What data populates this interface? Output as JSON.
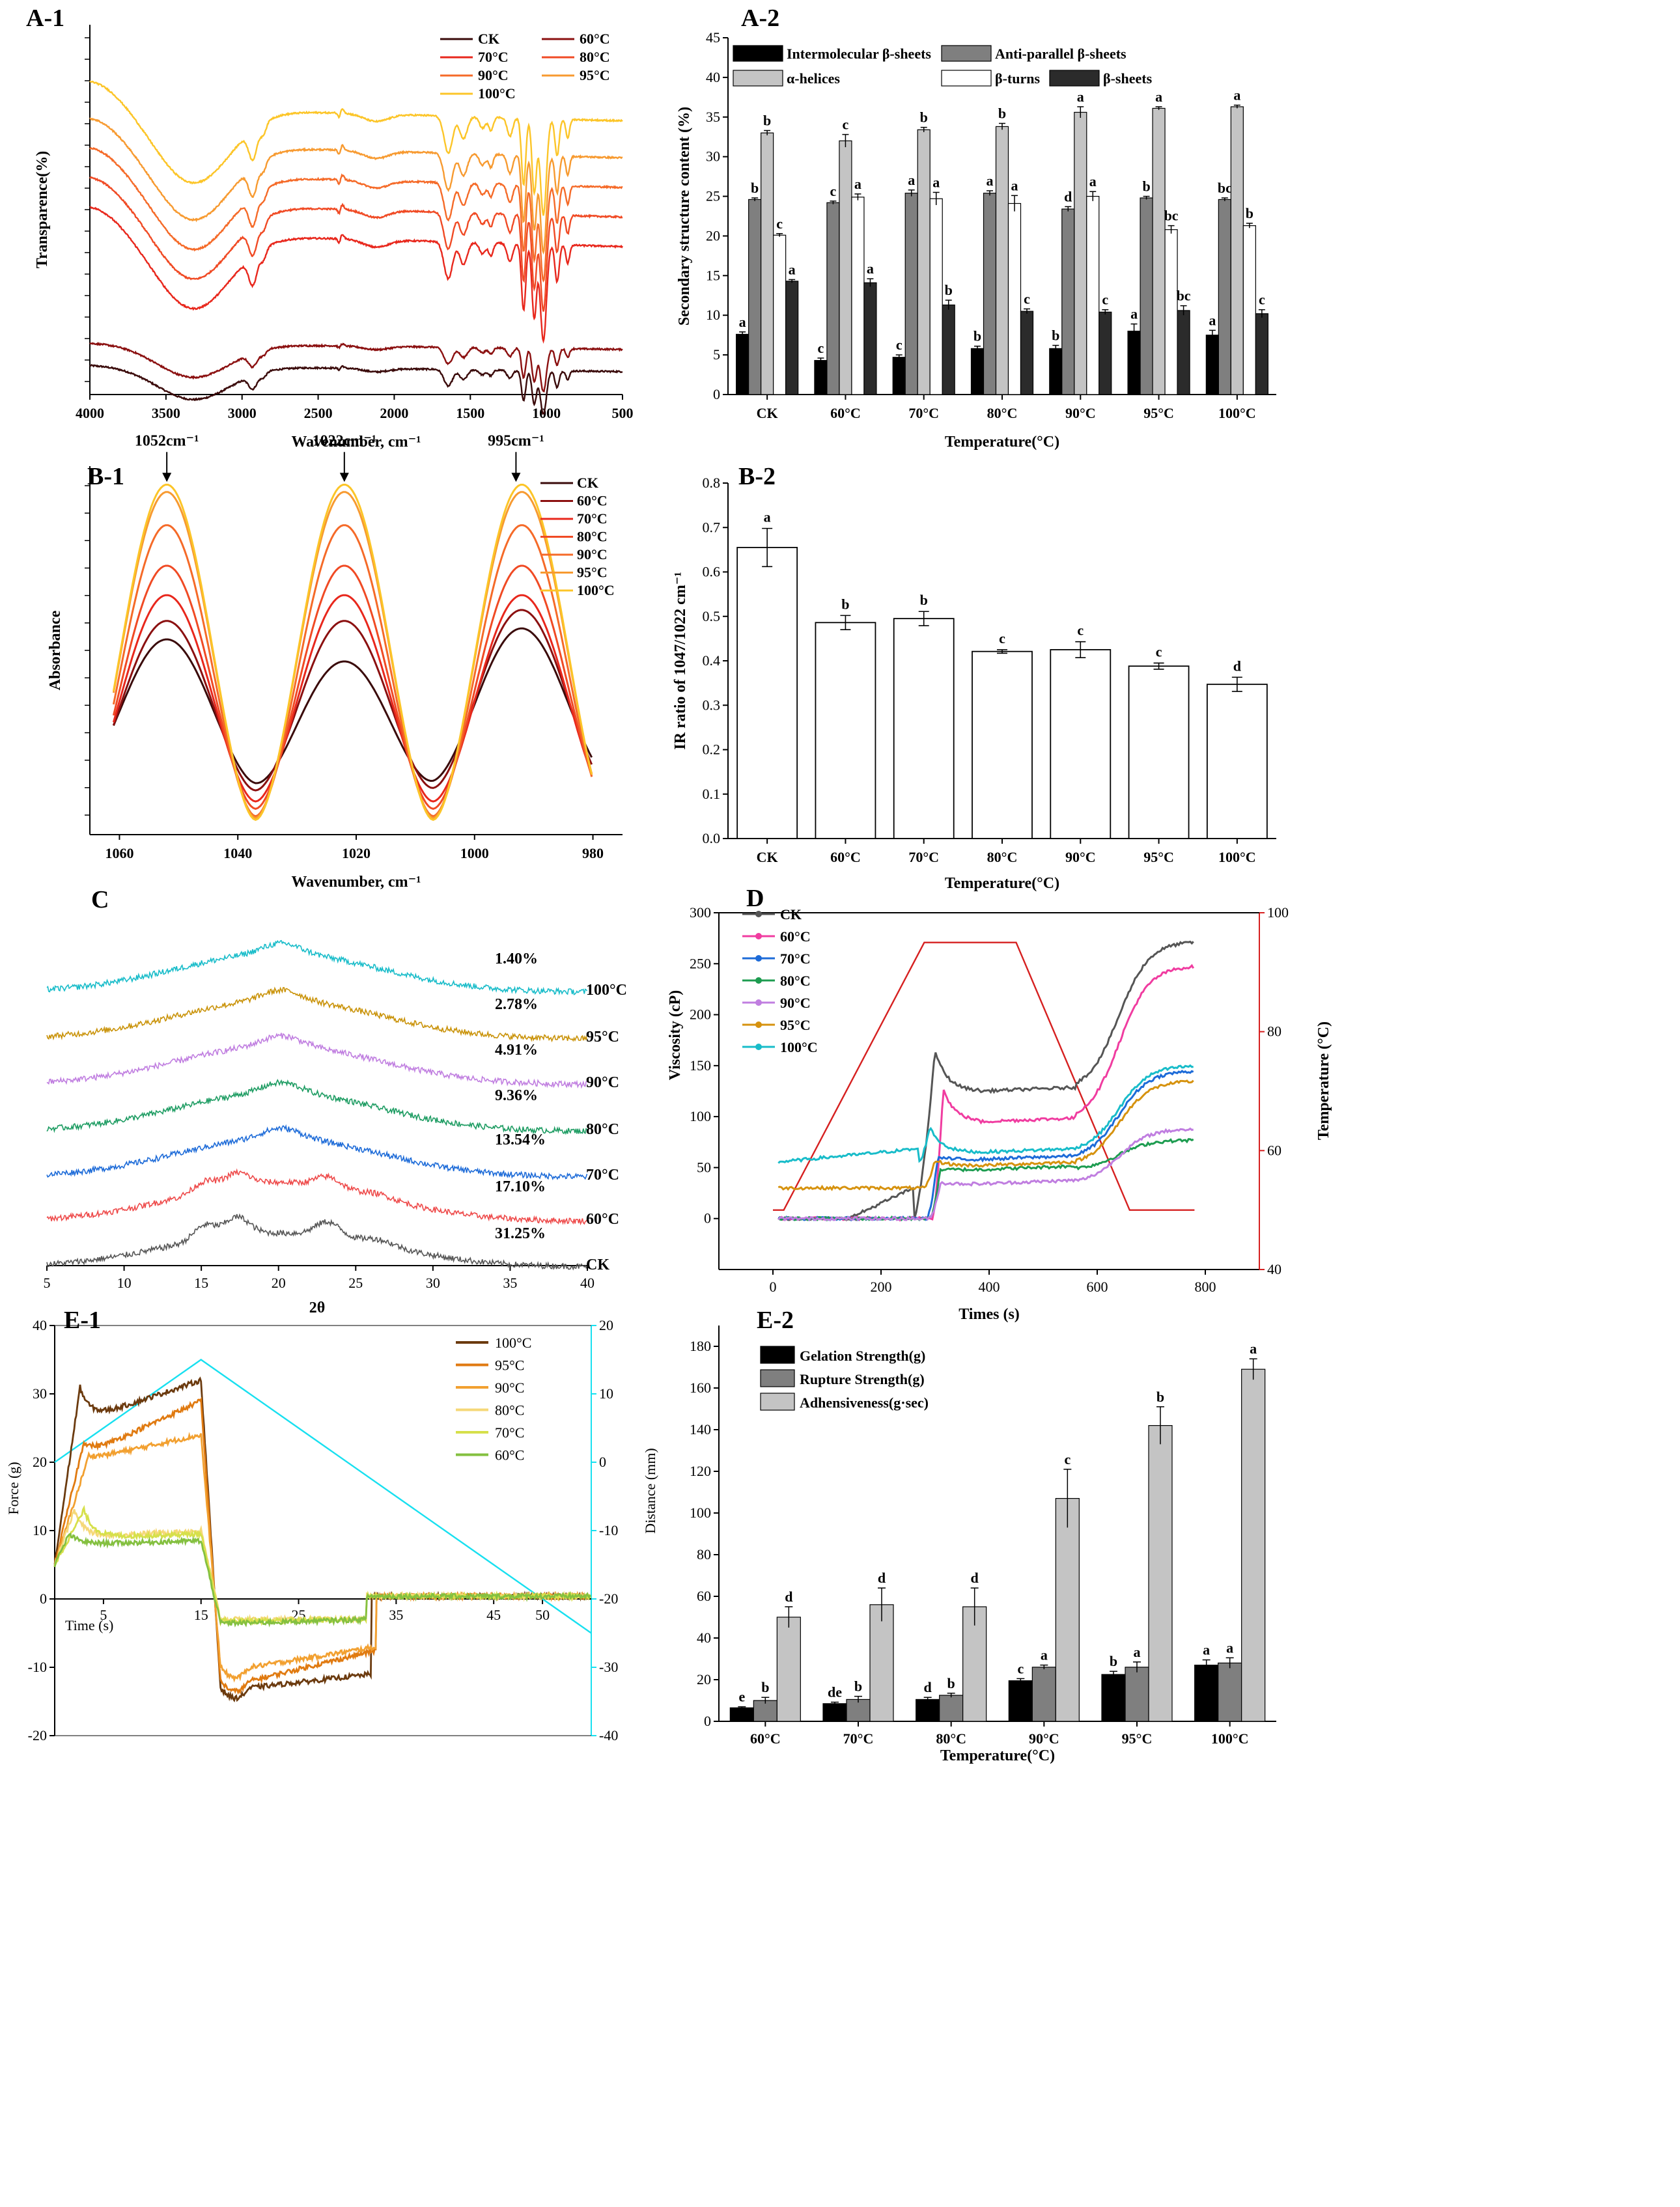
{
  "chart_data": [
    {
      "id": "A-1",
      "type": "line",
      "panel_label": "A-1",
      "xlabel": "Wavenumber, cm⁻¹",
      "ylabel": "Transparence(%)",
      "xlim": [
        4000,
        500
      ],
      "x_ticks": [
        "4000",
        "3500",
        "3000",
        "2500",
        "2000",
        "1500",
        "1000",
        "500"
      ],
      "legend": [
        "CK",
        "60°C",
        "70°C",
        "80°C",
        "90°C",
        "95°C",
        "100°C"
      ],
      "colors": [
        "#3a0a0a",
        "#8b1010",
        "#e8271c",
        "#f04a24",
        "#f56a28",
        "#f79a30",
        "#fcc528"
      ],
      "offsets": [
        0.08,
        0.14,
        0.44,
        0.52,
        0.6,
        0.68,
        0.78
      ]
    },
    {
      "id": "A-2",
      "type": "bar",
      "panel_label": "A-2",
      "xlabel": "Temperature(°C)",
      "ylabel": "Secondary structure content (%)",
      "ylim": [
        0,
        45
      ],
      "y_ticks": [
        "0",
        "5",
        "10",
        "15",
        "20",
        "25",
        "30",
        "35",
        "40",
        "45"
      ],
      "categories": [
        "CK",
        "60°C",
        "70°C",
        "80°C",
        "90°C",
        "95°C",
        "100°C"
      ],
      "series": [
        {
          "name": "Intermolecular β-sheets",
          "color": "#000000",
          "values": [
            7.6,
            4.3,
            4.7,
            5.8,
            5.8,
            8.0,
            7.5
          ],
          "errors": [
            0.3,
            0.3,
            0.3,
            0.3,
            0.4,
            0.9,
            0.6
          ],
          "labels": [
            "a",
            "c",
            "c",
            "b",
            "b",
            "a",
            "a"
          ]
        },
        {
          "name": "Anti-parallel β-sheets",
          "color": "#7f7f7f",
          "values": [
            24.6,
            24.2,
            25.4,
            25.4,
            23.4,
            24.8,
            24.6
          ],
          "errors": [
            0.2,
            0.2,
            0.4,
            0.3,
            0.3,
            0.2,
            0.2
          ],
          "labels": [
            "b",
            "c",
            "a",
            "a",
            "d",
            "b",
            "bc"
          ]
        },
        {
          "name": "α-helices",
          "color": "#c4c4c4",
          "values": [
            33.0,
            32.0,
            33.4,
            33.8,
            35.6,
            36.1,
            36.3
          ],
          "errors": [
            0.3,
            0.8,
            0.3,
            0.4,
            0.7,
            0.2,
            0.2
          ],
          "labels": [
            "b",
            "c",
            "b",
            "b",
            "a",
            "a",
            "a"
          ]
        },
        {
          "name": "β-turns",
          "color": "#ffffff",
          "values": [
            20.1,
            24.9,
            24.7,
            24.1,
            25.0,
            20.8,
            21.3
          ],
          "errors": [
            0.2,
            0.4,
            0.8,
            1.0,
            0.6,
            0.5,
            0.3
          ],
          "labels": [
            "c",
            "a",
            "a",
            "a",
            "a",
            "bc",
            "b"
          ]
        },
        {
          "name": "β-sheets",
          "color": "#2b2b2b",
          "values": [
            14.3,
            14.1,
            11.3,
            10.5,
            10.4,
            10.6,
            10.2
          ],
          "errors": [
            0.2,
            0.5,
            0.6,
            0.3,
            0.3,
            0.6,
            0.5
          ],
          "labels": [
            "a",
            "a",
            "b",
            "c",
            "c",
            "bc",
            "c"
          ]
        }
      ]
    },
    {
      "id": "B-1",
      "type": "line",
      "panel_label": "B-1",
      "xlabel": "Wavenumber, cm⁻¹",
      "ylabel": "Absorbance",
      "xlim": [
        1065,
        975
      ],
      "x_ticks": [
        "1060",
        "1040",
        "1020",
        "1000",
        "980"
      ],
      "legend": [
        "CK",
        "60°C",
        "70°C",
        "80°C",
        "90°C",
        "95°C",
        "100°C"
      ],
      "colors": [
        "#3a0a0a",
        "#8b1010",
        "#e8271c",
        "#f04a24",
        "#f56a28",
        "#f79a30",
        "#fcc528"
      ],
      "annotations": [
        "1052cm⁻¹",
        "1022cm⁻¹",
        "995cm⁻¹"
      ]
    },
    {
      "id": "B-2",
      "type": "bar",
      "panel_label": "B-2",
      "xlabel": "Temperature(°C)",
      "ylabel": "IR ratio of 1047/1022 cm⁻¹",
      "ylim": [
        0,
        0.8
      ],
      "y_ticks": [
        "0.0",
        "0.1",
        "0.2",
        "0.3",
        "0.4",
        "0.5",
        "0.6",
        "0.7",
        "0.8"
      ],
      "categories": [
        "CK",
        "60°C",
        "70°C",
        "80°C",
        "90°C",
        "95°C",
        "100°C"
      ],
      "values": [
        0.655,
        0.486,
        0.495,
        0.421,
        0.425,
        0.388,
        0.347
      ],
      "errors": [
        0.043,
        0.016,
        0.016,
        0.004,
        0.018,
        0.007,
        0.016
      ],
      "labels": [
        "a",
        "b",
        "b",
        "c",
        "c",
        "c",
        "d"
      ]
    },
    {
      "id": "C",
      "type": "line",
      "panel_label": "C",
      "xlabel": "2θ",
      "xlim": [
        5,
        40
      ],
      "x_ticks": [
        "5",
        "10",
        "15",
        "20",
        "25",
        "30",
        "35",
        "40"
      ],
      "series": [
        {
          "name": "100°C",
          "crystallinity": "1.40%",
          "color": "#18bcc9"
        },
        {
          "name": "95°C",
          "crystallinity": "2.78%",
          "color": "#c99208"
        },
        {
          "name": "90°C",
          "crystallinity": "4.91%",
          "color": "#c07ee0"
        },
        {
          "name": "80°C",
          "crystallinity": "9.36%",
          "color": "#1d9c62"
        },
        {
          "name": "70°C",
          "crystallinity": "13.54%",
          "color": "#1d6bd8"
        },
        {
          "name": "60°C",
          "crystallinity": "17.10%",
          "color": "#ee4a4a"
        },
        {
          "name": "CK",
          "crystallinity": "31.25%",
          "color": "#555555"
        }
      ]
    },
    {
      "id": "D",
      "type": "line",
      "panel_label": "D",
      "xlabel": "Times (s)",
      "ylabel": "Viscosity (cP)",
      "y2label": "Temperature (°C)",
      "xlim": [
        -100,
        900
      ],
      "ylim": [
        -50,
        300
      ],
      "y2lim": [
        40,
        100
      ],
      "x_ticks": [
        "0",
        "200",
        "400",
        "600",
        "800"
      ],
      "y_ticks": [
        "0",
        "50",
        "100",
        "150",
        "200",
        "250",
        "300"
      ],
      "y2_ticks": [
        "40",
        "60",
        "80",
        "100"
      ],
      "legend": [
        "CK",
        "60°C",
        "70°C",
        "80°C",
        "90°C",
        "95°C",
        "100°C"
      ],
      "colors": [
        "#555555",
        "#f03ca0",
        "#1d6bd8",
        "#1d9c50",
        "#c07ee0",
        "#d6920e",
        "#18bcc9"
      ],
      "temp_color": "#d62020"
    },
    {
      "id": "E-1",
      "type": "line",
      "panel_label": "E-1",
      "xlabel": "Time (s)",
      "ylabel": "Force (g)",
      "y2label": "Distance (mm)",
      "xlim": [
        0,
        55
      ],
      "ylim": [
        -20,
        40
      ],
      "y2lim": [
        -40,
        20
      ],
      "x_ticks": [
        "5",
        "15",
        "25",
        "35",
        "45",
        "50"
      ],
      "y_ticks": [
        "-20",
        "-10",
        "0",
        "10",
        "20",
        "30",
        "40"
      ],
      "y2_ticks": [
        "-40",
        "-30",
        "-20",
        "-10",
        "0",
        "10",
        "20"
      ],
      "legend": [
        "100°C",
        "95°C",
        "90°C",
        "80°C",
        "70°C",
        "60°C"
      ],
      "colors": [
        "#6b3a0e",
        "#e07a10",
        "#f2a030",
        "#f5d878",
        "#d6e04a",
        "#84c040"
      ],
      "distance_color": "#18e0f0"
    },
    {
      "id": "E-2",
      "type": "bar",
      "panel_label": "E-2",
      "xlabel": "Temperature(°C)",
      "ylim": [
        0,
        190
      ],
      "y_ticks": [
        "0",
        "20",
        "40",
        "60",
        "80",
        "100",
        "120",
        "140",
        "160",
        "180"
      ],
      "categories": [
        "60°C",
        "70°C",
        "80°C",
        "90°C",
        "95°C",
        "100°C"
      ],
      "series": [
        {
          "name": "Gelation Strength(g)",
          "color": "#000000",
          "values": [
            6.5,
            8.5,
            10.5,
            19.5,
            22.5,
            27
          ],
          "errors": [
            0.5,
            0.7,
            1.0,
            1.0,
            1.5,
            2.5
          ],
          "labels": [
            "e",
            "de",
            "d",
            "c",
            "b",
            "a"
          ]
        },
        {
          "name": "Rupture Strength(g)",
          "color": "#7f7f7f",
          "values": [
            10,
            10.5,
            12.5,
            26,
            26,
            28
          ],
          "errors": [
            1.5,
            1.5,
            1.0,
            1.0,
            2.5,
            2.5
          ],
          "labels": [
            "b",
            "b",
            "b",
            "a",
            "a",
            "a"
          ]
        },
        {
          "name": "Adhensiveness(g·sec)",
          "color": "#c4c4c4",
          "values": [
            50,
            56,
            55,
            107,
            142,
            169
          ],
          "errors": [
            5,
            8,
            9,
            14,
            9,
            5
          ],
          "labels": [
            "d",
            "d",
            "d",
            "c",
            "b",
            "a"
          ]
        }
      ]
    }
  ]
}
